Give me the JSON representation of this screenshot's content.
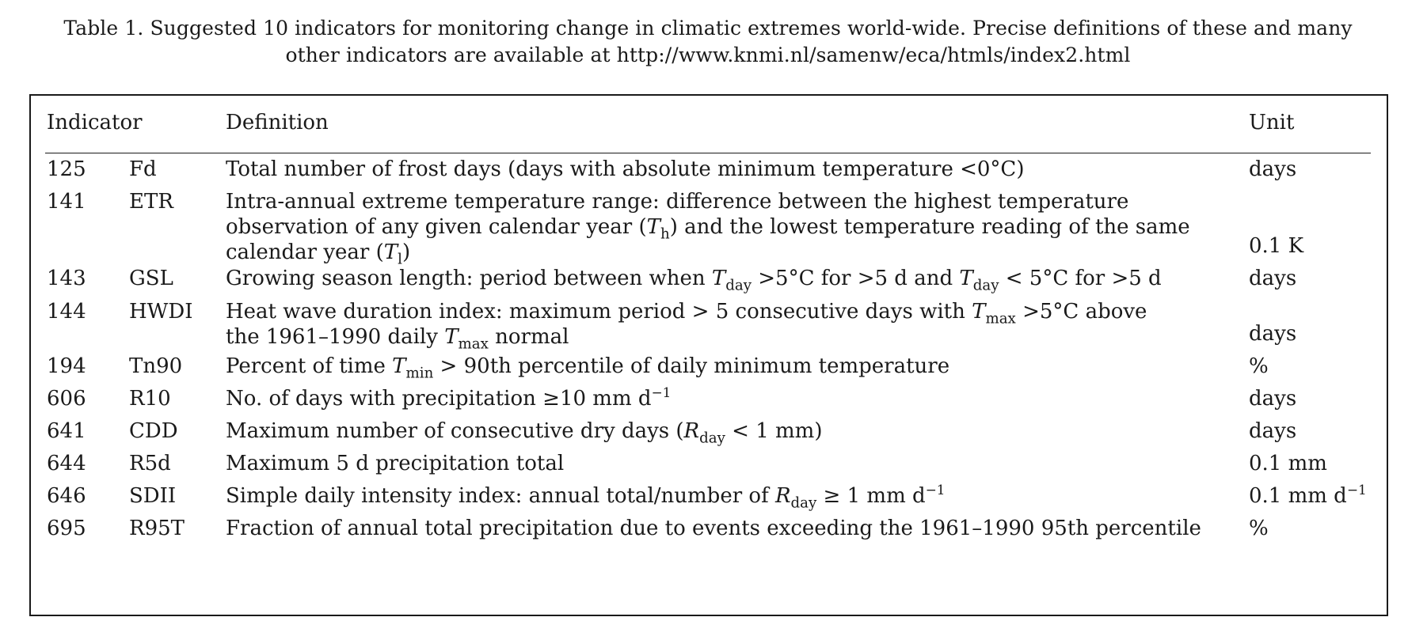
{
  "caption": {
    "line1": "Table 1. Suggested 10 indicators for monitoring change in climatic extremes world-wide. Precise definitions of these and many",
    "line2": "other indicators are available at http://www.knmi.nl/samenw/eca/htmls/index2.html"
  },
  "headers": {
    "indicator": "Indicator",
    "definition": "Definition",
    "unit": "Unit"
  },
  "rows": [
    {
      "num": "125",
      "code": "Fd",
      "unit": "days"
    },
    {
      "num": "141",
      "code": "ETR",
      "unit": "0.1 K"
    },
    {
      "num": "143",
      "code": "GSL",
      "unit": "days"
    },
    {
      "num": "144",
      "code": "HWDI",
      "unit": "days"
    },
    {
      "num": "194",
      "code": "Tn90",
      "unit": "%"
    },
    {
      "num": "606",
      "code": "R10",
      "unit": "days"
    },
    {
      "num": "641",
      "code": "CDD",
      "unit": "days"
    },
    {
      "num": "644",
      "code": "R5d",
      "unit": "0.1 mm"
    },
    {
      "num": "646",
      "code": "SDII",
      "unit": "0.1 mm d"
    },
    {
      "num": "695",
      "code": "R95T",
      "unit": "%"
    }
  ],
  "defs": {
    "r0": "Total number of frost days (days with absolute minimum temperature <0°C)",
    "r1a": "Intra-annual extreme temperature range: difference between the highest temperature",
    "r1b_pre": "observation of any given calendar year (",
    "r1b_T": "T",
    "r1b_sub": "h",
    "r1b_post": ") and the lowest temperature reading of the same",
    "r1c_pre": "calendar year (",
    "r1c_T": "T",
    "r1c_sub": "l",
    "r1c_post": ")",
    "r2_pre": "Growing season length: period between when ",
    "r2_T1": "T",
    "r2_sub1": "day",
    "r2_mid": " >5°C for >5 d and ",
    "r2_T2": "T",
    "r2_sub2": "day",
    "r2_post": " < 5°C for >5 d",
    "r3a_pre": "Heat wave duration index: maximum period > 5 consecutive days with ",
    "r3a_T": "T",
    "r3a_sub": "max",
    "r3a_post": " >5°C above",
    "r3b_pre": "the 1961–1990 daily ",
    "r3b_T": "T",
    "r3b_sub": "max",
    "r3b_post": " normal",
    "r4_pre": "Percent of time ",
    "r4_T": "T",
    "r4_sub": "min",
    "r4_post": " > 90th percentile of daily minimum temperature",
    "r5_pre": "No. of days with precipitation ≥10 mm d",
    "r5_sup": "−1",
    "r6_pre": "Maximum number of consecutive dry days (",
    "r6_R": "R",
    "r6_sub": "day",
    "r6_post": " < 1 mm)",
    "r7": "Maximum 5 d precipitation total",
    "r8_pre": "Simple daily intensity index: annual total/number of ",
    "r8_R": "R",
    "r8_sub": "day",
    "r8_post": " ≥ 1 mm d",
    "r8_sup": "−1",
    "r9": "Fraction of annual total precipitation due to events exceeding the 1961–1990 95th percentile",
    "unit_sup": "−1"
  }
}
